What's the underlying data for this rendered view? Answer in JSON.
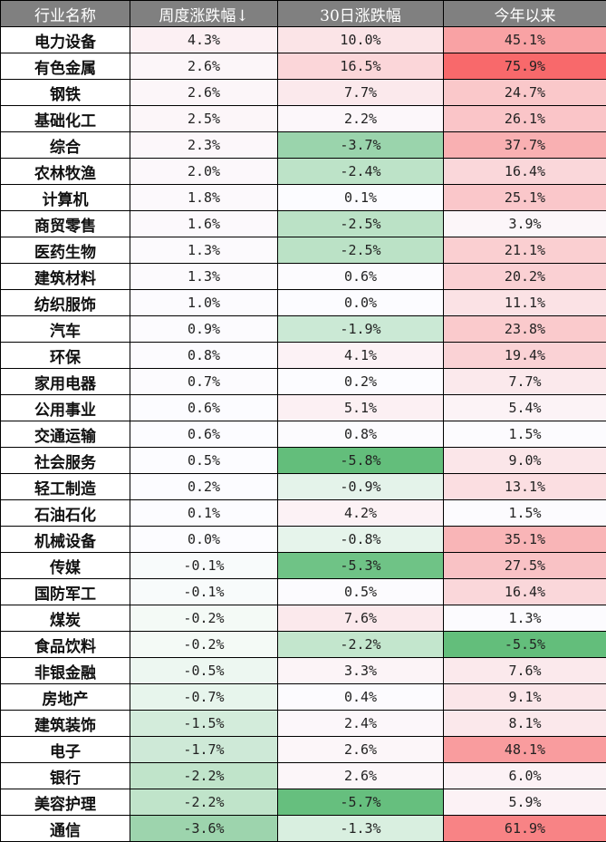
{
  "table": {
    "headers": [
      "行业名称",
      "周度涨跌幅↓",
      "30日涨跌幅",
      "今年以来"
    ],
    "sort_indicator": "down-arrow",
    "colors": {
      "header_bg": "#808080",
      "header_text": "#ffffff",
      "positive_max": "#f8696b",
      "negative_max": "#63be7b",
      "neutral": "#fcfcff"
    },
    "rows": [
      {
        "name": "电力设备",
        "week": "4.3%",
        "d30": "10.0%",
        "ytd": "45.1%",
        "bg": [
          "#fcf0f3",
          "#fbe4e7",
          "#f9a2a4"
        ]
      },
      {
        "name": "有色金属",
        "week": "2.6%",
        "d30": "16.5%",
        "ytd": "75.9%",
        "bg": [
          "#fcf6f9",
          "#fbd6d9",
          "#f8696b"
        ]
      },
      {
        "name": "钢铁",
        "week": "2.6%",
        "d30": "7.7%",
        "ytd": "24.7%",
        "bg": [
          "#fcf6f9",
          "#fbe9ec",
          "#fac8ca"
        ]
      },
      {
        "name": "基础化工",
        "week": "2.5%",
        "d30": "2.2%",
        "ytd": "26.1%",
        "bg": [
          "#fcf6f9",
          "#fcf7fa",
          "#fac5c8"
        ]
      },
      {
        "name": "综合",
        "week": "2.3%",
        "d30": "-3.7%",
        "ytd": "37.7%",
        "bg": [
          "#fcf7fa",
          "#9ad4ac",
          "#f9b0b2"
        ]
      },
      {
        "name": "农林牧渔",
        "week": "2.0%",
        "d30": "-2.4%",
        "ytd": "16.4%",
        "bg": [
          "#fcf8fb",
          "#bde3c8",
          "#fad7da"
        ]
      },
      {
        "name": "计算机",
        "week": "1.8%",
        "d30": "0.1%",
        "ytd": "25.1%",
        "bg": [
          "#fcf9fc",
          "#fcfcff",
          "#fac7ca"
        ]
      },
      {
        "name": "商贸零售",
        "week": "1.6%",
        "d30": "-2.5%",
        "ytd": "3.9%",
        "bg": [
          "#fcf9fc",
          "#bbe2c6",
          "#fcf6f9"
        ]
      },
      {
        "name": "医药生物",
        "week": "1.3%",
        "d30": "-2.5%",
        "ytd": "21.1%",
        "bg": [
          "#fcfafd",
          "#bbe2c6",
          "#facfd1"
        ]
      },
      {
        "name": "建筑材料",
        "week": "1.3%",
        "d30": "0.6%",
        "ytd": "20.2%",
        "bg": [
          "#fcfafd",
          "#fcfbfe",
          "#fad0d3"
        ]
      },
      {
        "name": "纺织服饰",
        "week": "1.0%",
        "d30": "0.0%",
        "ytd": "11.1%",
        "bg": [
          "#fcfbfe",
          "#fcfcff",
          "#fbe2e5"
        ]
      },
      {
        "name": "汽车",
        "week": "0.9%",
        "d30": "-1.9%",
        "ytd": "23.8%",
        "bg": [
          "#fcfbfe",
          "#cbe9d5",
          "#facacc"
        ]
      },
      {
        "name": "环保",
        "week": "0.8%",
        "d30": "4.1%",
        "ytd": "19.4%",
        "bg": [
          "#fcfbfe",
          "#fcf2f5",
          "#fad2d5"
        ]
      },
      {
        "name": "家用电器",
        "week": "0.7%",
        "d30": "0.2%",
        "ytd": "7.7%",
        "bg": [
          "#fcfbfe",
          "#fcfcff",
          "#fbe9ec"
        ]
      },
      {
        "name": "公用事业",
        "week": "0.6%",
        "d30": "5.1%",
        "ytd": "5.4%",
        "bg": [
          "#fcfcff",
          "#fcf0f3",
          "#fcf3f6"
        ]
      },
      {
        "name": "交通运输",
        "week": "0.6%",
        "d30": "0.8%",
        "ytd": "1.5%",
        "bg": [
          "#fcfcff",
          "#fcfbfe",
          "#fcfbfe"
        ]
      },
      {
        "name": "社会服务",
        "week": "0.5%",
        "d30": "-5.8%",
        "ytd": "9.0%",
        "bg": [
          "#fcfcff",
          "#63be7b",
          "#fbe6e9"
        ]
      },
      {
        "name": "轻工制造",
        "week": "0.2%",
        "d30": "-0.9%",
        "ytd": "13.1%",
        "bg": [
          "#fcfcff",
          "#e4f3ea",
          "#fbdee1"
        ]
      },
      {
        "name": "石油石化",
        "week": "0.1%",
        "d30": "4.2%",
        "ytd": "1.5%",
        "bg": [
          "#fcfcff",
          "#fcf2f5",
          "#fcfbfe"
        ]
      },
      {
        "name": "机械设备",
        "week": "0.0%",
        "d30": "-0.8%",
        "ytd": "35.1%",
        "bg": [
          "#fcfcff",
          "#e6f4eb",
          "#f9b5b7"
        ]
      },
      {
        "name": "传媒",
        "week": "-0.1%",
        "d30": "-5.3%",
        "ytd": "27.5%",
        "bg": [
          "#f8fbfb",
          "#6fc386",
          "#f9c2c5"
        ]
      },
      {
        "name": "国防军工",
        "week": "-0.1%",
        "d30": "0.5%",
        "ytd": "16.4%",
        "bg": [
          "#f8fbfb",
          "#fcfbfe",
          "#fad7da"
        ]
      },
      {
        "name": "煤炭",
        "week": "-0.2%",
        "d30": "7.6%",
        "ytd": "1.3%",
        "bg": [
          "#f4faf6",
          "#fbe9ec",
          "#fcfbfe"
        ]
      },
      {
        "name": "食品饮料",
        "week": "-0.2%",
        "d30": "-2.2%",
        "ytd": "-5.5%",
        "bg": [
          "#f4faf6",
          "#c3e6cd",
          "#63be7b"
        ]
      },
      {
        "name": "非银金融",
        "week": "-0.5%",
        "d30": "3.3%",
        "ytd": "7.6%",
        "bg": [
          "#edf7f1",
          "#fcf4f7",
          "#fbe9ec"
        ]
      },
      {
        "name": "房地产",
        "week": "-0.7%",
        "d30": "0.4%",
        "ytd": "9.1%",
        "bg": [
          "#e7f5ec",
          "#fcfbfe",
          "#fbe6e9"
        ]
      },
      {
        "name": "建筑装饰",
        "week": "-1.5%",
        "d30": "2.4%",
        "ytd": "8.1%",
        "bg": [
          "#d3ecdb",
          "#fcf7fa",
          "#fbe8eb"
        ]
      },
      {
        "name": "电子",
        "week": "-1.7%",
        "d30": "2.6%",
        "ytd": "48.1%",
        "bg": [
          "#cee9d7",
          "#fcf6f9",
          "#f99c9e"
        ]
      },
      {
        "name": "银行",
        "week": "-2.2%",
        "d30": "2.6%",
        "ytd": "6.0%",
        "bg": [
          "#c0e4ca",
          "#fcf6f9",
          "#fcf2f5"
        ]
      },
      {
        "name": "美容护理",
        "week": "-2.2%",
        "d30": "-5.7%",
        "ytd": "5.9%",
        "bg": [
          "#c0e4ca",
          "#66bf7e",
          "#fcf2f5"
        ]
      },
      {
        "name": "通信",
        "week": "-3.6%",
        "d30": "-1.3%",
        "ytd": "61.9%",
        "bg": [
          "#9dd4ad",
          "#d9efe0",
          "#f88385"
        ]
      }
    ]
  }
}
